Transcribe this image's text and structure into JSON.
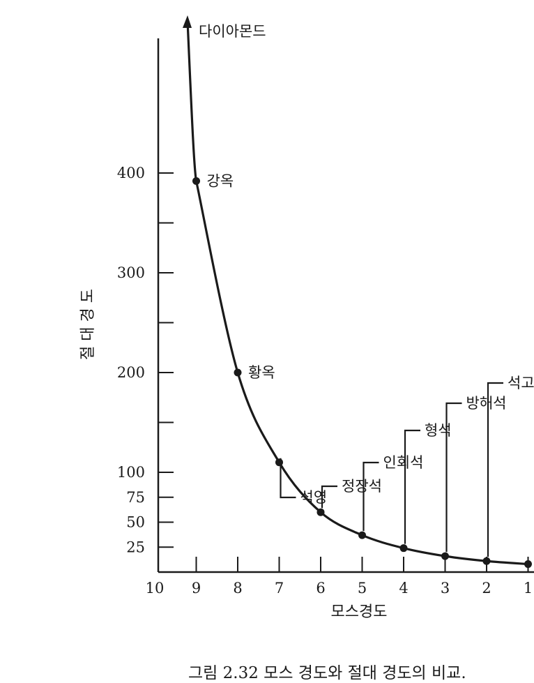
{
  "chart_data": {
    "type": "line",
    "xlabel": "모스경도",
    "ylabel": "절 대 경 도",
    "x_ticks": [
      "10",
      "9",
      "8",
      "7",
      "6",
      "5",
      "4",
      "3",
      "2",
      "1"
    ],
    "y_ticks": [
      "25",
      "50",
      "75",
      "100",
      "200",
      "300",
      "400"
    ],
    "x_reversed": true,
    "xlim": [
      10,
      1
    ],
    "ylim": [
      0,
      520
    ],
    "points": [
      {
        "x": 9,
        "y": 392,
        "label": "강옥"
      },
      {
        "x": 8,
        "y": 200,
        "label": "황옥"
      },
      {
        "x": 7,
        "y": 110,
        "label": "석영"
      },
      {
        "x": 6,
        "y": 60,
        "label": "정장석"
      },
      {
        "x": 5,
        "y": 37,
        "label": "인회석"
      },
      {
        "x": 4,
        "y": 24,
        "label": "형석"
      },
      {
        "x": 3,
        "y": 16,
        "label": "방해석"
      },
      {
        "x": 2,
        "y": 11,
        "label": "석고"
      },
      {
        "x": 1,
        "y": 8,
        "label": ""
      }
    ],
    "top_label": "다이아몬드",
    "caption": "그림 2.32  모스 경도와 절대 경도의 비교."
  }
}
